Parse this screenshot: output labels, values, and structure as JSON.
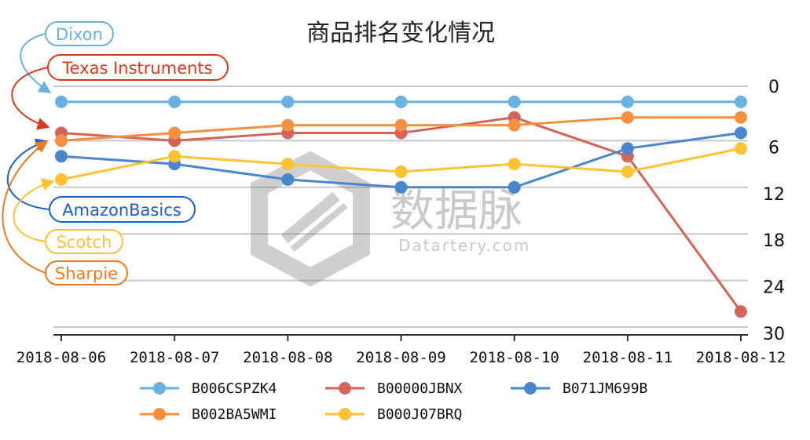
{
  "chart_data": {
    "type": "line",
    "title": "商品排名变化情况",
    "categories": [
      "2018-08-06",
      "2018-08-07",
      "2018-08-08",
      "2018-08-09",
      "2018-08-10",
      "2018-08-11",
      "2018-08-12"
    ],
    "y_axis": {
      "position": "right",
      "inverted": true,
      "ylim": [
        0,
        30
      ],
      "ticks": [
        0,
        6,
        12,
        18,
        24,
        30
      ]
    },
    "grid": true,
    "legend_position": "bottom",
    "series": [
      {
        "name": "B006CSPZK4",
        "color": "#6ab0e0",
        "values": [
          1,
          1,
          1,
          1,
          1,
          1,
          1
        ]
      },
      {
        "name": "B00000JBNX",
        "color": "#d3645a",
        "values": [
          5,
          6,
          5,
          5,
          3,
          8,
          28
        ]
      },
      {
        "name": "B071JM699B",
        "color": "#4a86cc",
        "values": [
          8,
          9,
          11,
          12,
          12,
          7,
          5
        ]
      },
      {
        "name": "B002BA5WMI",
        "color": "#f59040",
        "values": [
          6,
          5,
          4,
          4,
          4,
          3,
          3
        ]
      },
      {
        "name": "B000J07BRQ",
        "color": "#ffc235",
        "values": [
          11,
          8,
          9,
          10,
          9,
          10,
          7
        ]
      }
    ],
    "annotations": [
      {
        "label": "Dixon",
        "color": "#6ab0e0"
      },
      {
        "label": "Texas Instruments",
        "color": "#d63a20"
      },
      {
        "label": "AmazonBasics",
        "color": "#1c5fc8"
      },
      {
        "label": "Scotch",
        "color": "#ffc235"
      },
      {
        "label": "Sharpie",
        "color": "#f07820"
      }
    ]
  },
  "watermark": {
    "cn": "数据脉",
    "en": "Datartery.com"
  }
}
